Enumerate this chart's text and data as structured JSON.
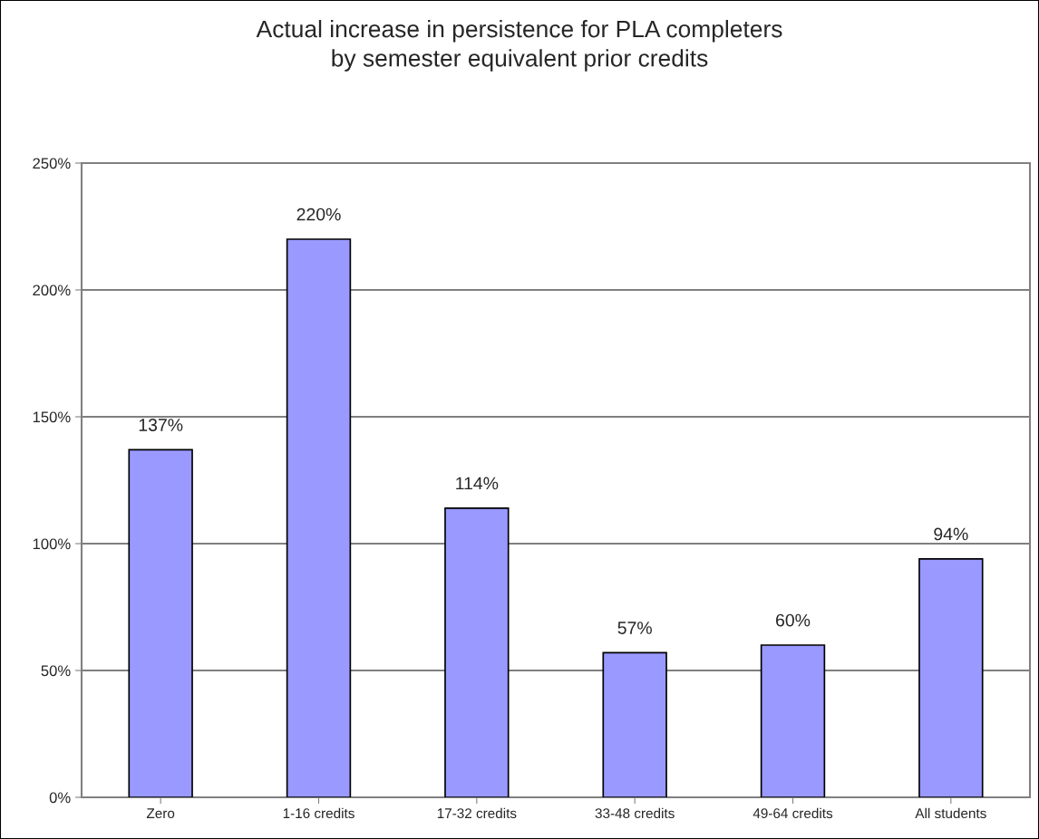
{
  "chart_data": {
    "type": "bar",
    "title": "Actual increase in persistence for PLA completers\nby semester equivalent prior credits",
    "categories": [
      "Zero",
      "1-16 credits",
      "17-32 credits",
      "33-48 credits",
      "49-64 credits",
      "All students"
    ],
    "values": [
      137,
      220,
      114,
      57,
      60,
      94
    ],
    "value_labels": [
      "137%",
      "220%",
      "114%",
      "57%",
      "60%",
      "94%"
    ],
    "color": "#9999ff",
    "ylim": [
      0,
      250
    ],
    "yticks": [
      {
        "value": 0,
        "label": "0%"
      },
      {
        "value": 50,
        "label": "50%"
      },
      {
        "value": 100,
        "label": "100%"
      },
      {
        "value": 150,
        "label": "150%"
      },
      {
        "value": 200,
        "label": "200%"
      },
      {
        "value": 250,
        "label": "250%"
      }
    ],
    "grid": "y",
    "legend": false
  }
}
